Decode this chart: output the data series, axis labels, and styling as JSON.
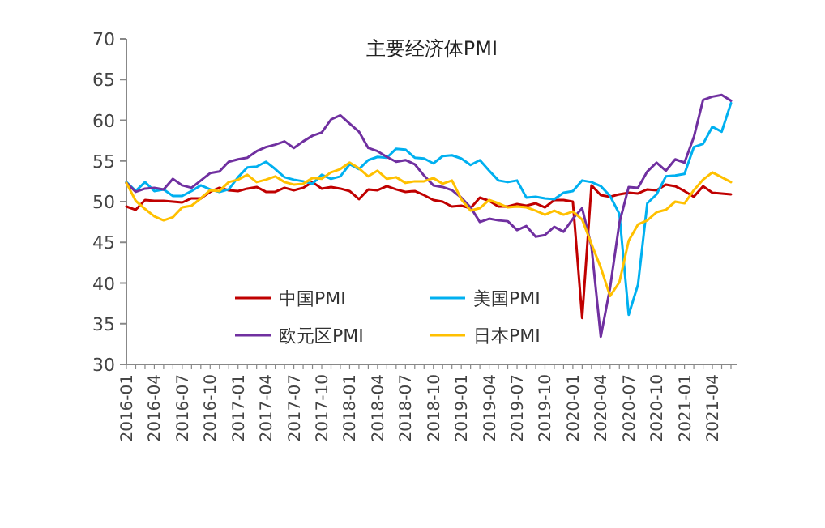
{
  "chart_data": {
    "type": "line",
    "title": "主要经济体PMI",
    "categories": [
      "2016-01",
      null,
      null,
      "2016-04",
      null,
      null,
      "2016-07",
      null,
      null,
      "2016-10",
      null,
      null,
      "2017-01",
      null,
      null,
      "2017-04",
      null,
      null,
      "2017-07",
      null,
      null,
      "2017-10",
      null,
      null,
      "2018-01",
      null,
      null,
      "2018-04",
      null,
      null,
      "2018-07",
      null,
      null,
      "2018-10",
      null,
      null,
      "2019-01",
      null,
      null,
      "2019-04",
      null,
      null,
      "2019-07",
      null,
      null,
      "2019-10",
      null,
      null,
      "2020-01",
      null,
      null,
      "2020-04",
      null,
      null,
      "2020-07",
      null,
      null,
      "2020-10",
      null,
      null,
      "2021-01",
      null,
      null,
      "2021-04",
      null,
      null
    ],
    "ylim": [
      30,
      70
    ],
    "yticks": [
      30,
      35,
      40,
      45,
      50,
      55,
      60,
      65,
      70
    ],
    "legend": "bottom",
    "series": [
      {
        "name": "中国PMI",
        "color": "#c00000",
        "values": [
          49.4,
          49.0,
          50.2,
          50.1,
          50.1,
          50.0,
          49.9,
          50.4,
          50.4,
          51.2,
          51.7,
          51.4,
          51.3,
          51.6,
          51.8,
          51.2,
          51.2,
          51.7,
          51.4,
          51.7,
          52.4,
          51.6,
          51.8,
          51.6,
          51.3,
          50.3,
          51.5,
          51.4,
          51.9,
          51.5,
          51.2,
          51.3,
          50.8,
          50.2,
          50.0,
          49.4,
          49.5,
          49.2,
          50.5,
          50.1,
          49.4,
          49.4,
          49.7,
          49.5,
          49.8,
          49.3,
          50.2,
          50.2,
          50.0,
          35.7,
          52.0,
          50.8,
          50.6,
          50.9,
          51.1,
          51.0,
          51.5,
          51.4,
          52.1,
          51.9,
          51.3,
          50.6,
          51.9,
          51.1,
          51.0,
          50.9
        ]
      },
      {
        "name": "美国PMI",
        "color": "#00b0f0",
        "values": [
          52.4,
          51.3,
          52.4,
          51.3,
          51.5,
          50.7,
          50.7,
          51.3,
          52.0,
          51.5,
          51.2,
          51.5,
          53.0,
          54.2,
          54.3,
          54.9,
          54.0,
          53.0,
          52.7,
          52.5,
          52.2,
          53.3,
          52.8,
          53.1,
          54.6,
          54.0,
          55.1,
          55.5,
          55.4,
          56.5,
          56.4,
          55.4,
          55.3,
          54.7,
          55.6,
          55.7,
          55.3,
          54.5,
          55.1,
          53.8,
          52.6,
          52.4,
          52.6,
          50.5,
          50.6,
          50.4,
          50.3,
          51.1,
          51.3,
          52.6,
          52.4,
          51.9,
          50.7,
          48.5,
          36.1,
          39.8,
          49.8,
          50.9,
          53.1,
          53.2,
          53.4,
          56.7,
          57.1,
          59.2,
          58.6,
          62.1
        ]
      },
      {
        "name": "欧元区PMI",
        "color": "#7030a0",
        "values": [
          52.3,
          51.2,
          51.6,
          51.7,
          51.5,
          52.8,
          52.0,
          51.7,
          52.6,
          53.5,
          53.7,
          54.9,
          55.2,
          55.4,
          56.2,
          56.7,
          57.0,
          57.4,
          56.6,
          57.4,
          58.1,
          58.5,
          60.1,
          60.6,
          59.6,
          58.6,
          56.6,
          56.2,
          55.5,
          54.9,
          55.1,
          54.6,
          53.2,
          52.0,
          51.8,
          51.4,
          50.5,
          49.3,
          47.5,
          47.9,
          47.7,
          47.6,
          46.5,
          47.0,
          45.7,
          45.9,
          46.9,
          46.3,
          47.9,
          49.2,
          44.5,
          33.4,
          39.4,
          47.4,
          51.8,
          51.7,
          53.7,
          54.8,
          53.8,
          55.2,
          54.8,
          57.9,
          62.5,
          62.9,
          63.1,
          62.4
        ]
      },
      {
        "name": "日本PMI",
        "color": "#ffc000",
        "values": [
          52.3,
          50.1,
          49.1,
          48.2,
          47.7,
          48.1,
          49.3,
          49.5,
          50.4,
          51.4,
          51.3,
          52.4,
          52.7,
          53.3,
          52.4,
          52.7,
          53.1,
          52.4,
          52.1,
          52.2,
          52.9,
          52.8,
          53.6,
          54.0,
          54.8,
          54.1,
          53.1,
          53.8,
          52.8,
          53.0,
          52.3,
          52.5,
          52.5,
          52.9,
          52.2,
          52.6,
          50.3,
          48.9,
          49.2,
          50.2,
          49.8,
          49.3,
          49.4,
          49.3,
          48.9,
          48.4,
          48.9,
          48.4,
          48.8,
          47.8,
          44.8,
          41.9,
          38.4,
          40.1,
          45.2,
          47.2,
          47.7,
          48.7,
          49.0,
          50.0,
          49.8,
          51.4,
          52.7,
          53.6,
          53.0,
          52.4
        ]
      }
    ]
  }
}
